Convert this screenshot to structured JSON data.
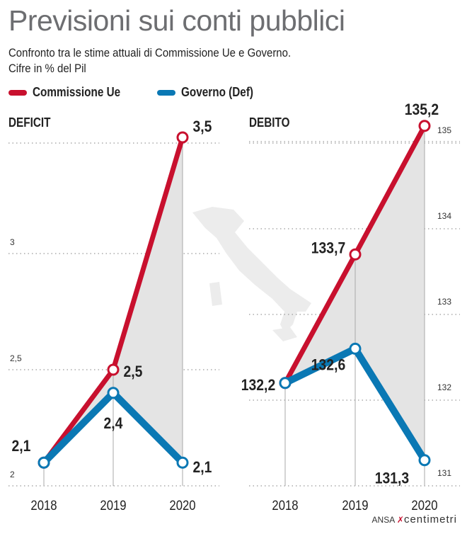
{
  "title": "Previsioni sui conti pubblici",
  "subtitle_line1": "Confronto tra le stime attuali di Commissione Ue e Governo.",
  "subtitle_line2": "Cifre in % del Pil",
  "credit": {
    "source": "ANSA",
    "brand": "centimetri"
  },
  "colors": {
    "commissione": "#c8102e",
    "governo": "#0a78b4",
    "fill": "#e4e4e4"
  },
  "chart_data": [
    {
      "type": "line",
      "title": "DEFICIT",
      "categories": [
        "2018",
        "2019",
        "2020"
      ],
      "ylim": [
        2,
        3.5
      ],
      "yticks": [
        2,
        2.5,
        3
      ],
      "ytick_labels": [
        "2",
        "2,5",
        "3"
      ],
      "series": [
        {
          "name": "Commissione Ue",
          "values": [
            2.1,
            2.5,
            3.5
          ],
          "labels": [
            "2,1",
            "2,5",
            "3,5"
          ]
        },
        {
          "name": "Governo (Def)",
          "values": [
            2.1,
            2.4,
            2.1
          ],
          "labels": [
            "",
            "2,4",
            "2,1"
          ]
        }
      ],
      "legend": "top-left"
    },
    {
      "type": "line",
      "title": "DEBITO",
      "categories": [
        "2018",
        "2019",
        "2020"
      ],
      "ylim": [
        131,
        135.2
      ],
      "yticks": [
        131,
        132,
        133,
        134,
        135
      ],
      "ytick_labels": [
        "131",
        "132",
        "133",
        "134",
        "135"
      ],
      "series": [
        {
          "name": "Commissione Ue",
          "values": [
            132.2,
            133.7,
            135.2
          ],
          "labels": [
            "",
            "133,7",
            "135,2"
          ]
        },
        {
          "name": "Governo (Def)",
          "values": [
            132.2,
            132.6,
            131.3
          ],
          "labels": [
            "132,2",
            "132,6",
            "131,3"
          ]
        }
      ],
      "legend": "top-left"
    }
  ]
}
